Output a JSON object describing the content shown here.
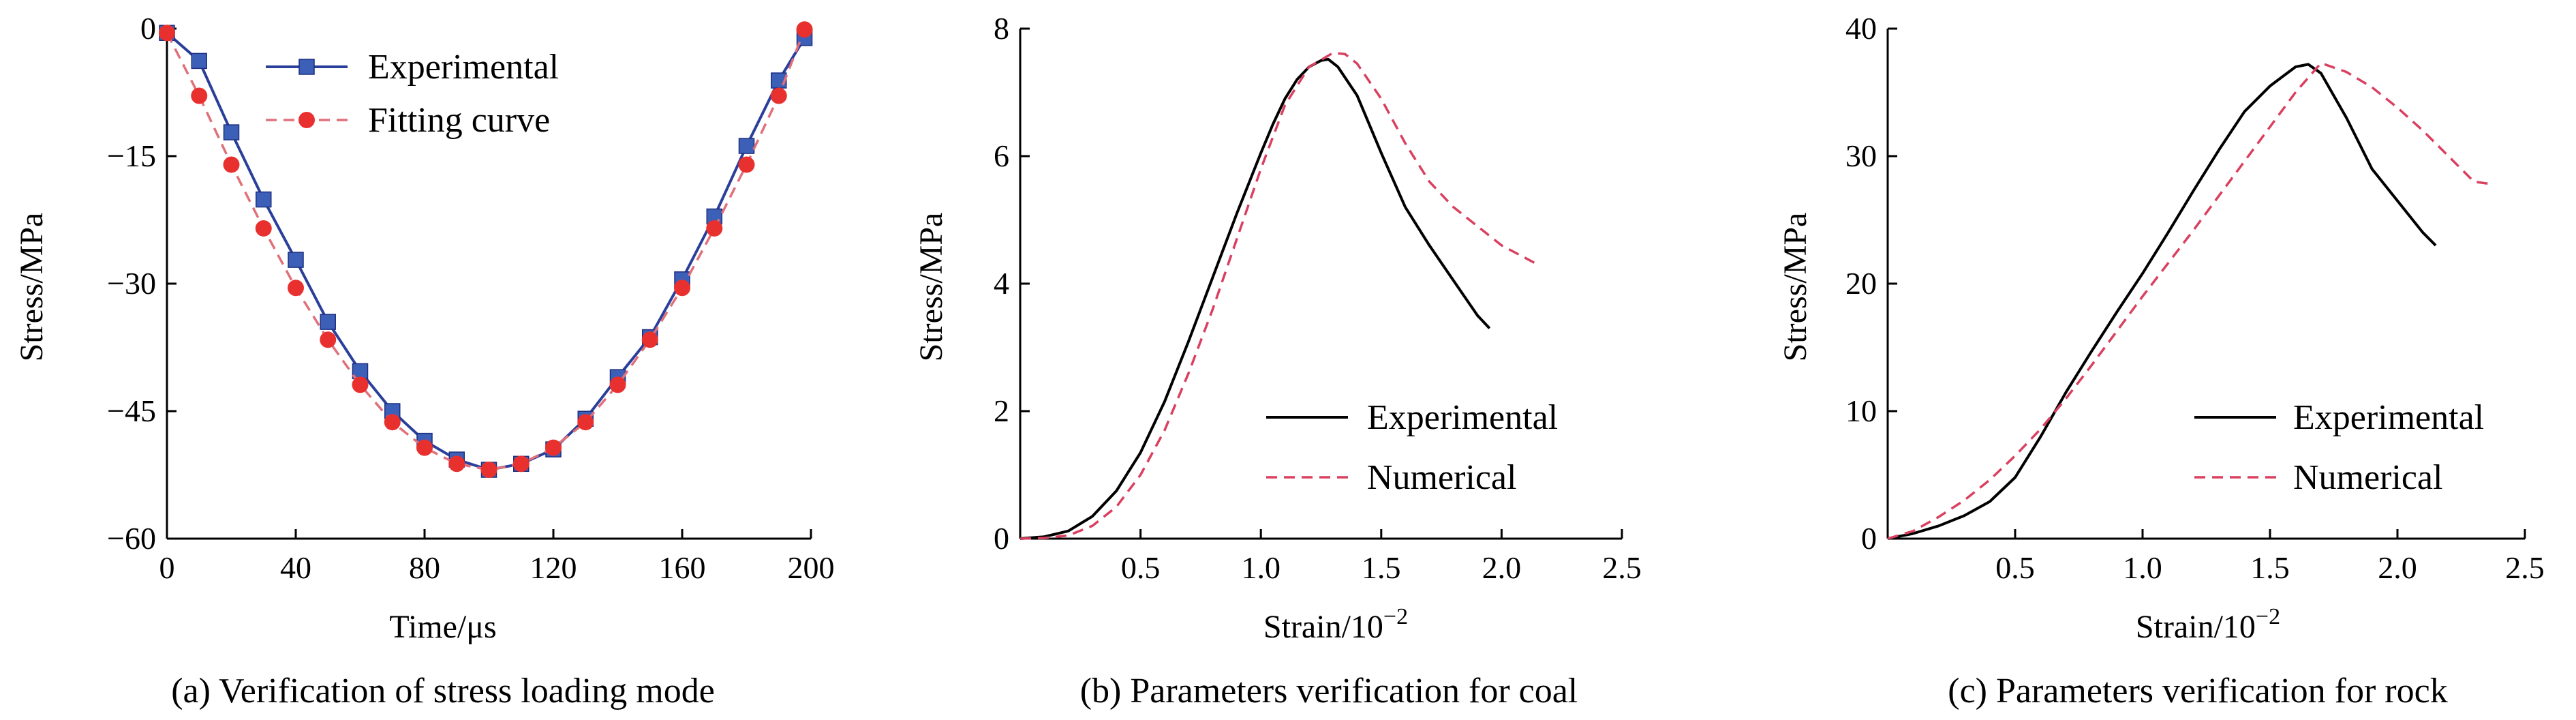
{
  "chart_data": [
    {
      "type": "line",
      "caption": "(a) Verification of stress loading mode",
      "xlabel": "Time/μs",
      "ylabel": "Stress/MPa",
      "xlim": [
        0,
        200
      ],
      "ylim": [
        -60,
        0
      ],
      "xticks": [
        0,
        40,
        80,
        120,
        160,
        200
      ],
      "yticks": [
        0,
        -15,
        -30,
        -45,
        -60
      ],
      "xtick_labels": [
        "0",
        "40",
        "80",
        "120",
        "160",
        "200"
      ],
      "ytick_labels": [
        "0",
        "−15",
        "−30",
        "−45",
        "−60"
      ],
      "legend_position": "top-center",
      "series": [
        {
          "name": "Experimental",
          "color": "#2a3f9a",
          "marker_color": "#3c5fb8",
          "marker": "square",
          "style": "solid",
          "x": [
            0,
            10,
            20,
            30,
            40,
            50,
            60,
            70,
            80,
            90,
            100,
            110,
            120,
            130,
            140,
            150,
            160,
            170,
            180,
            190,
            198
          ],
          "y": [
            -0.5,
            -3.8,
            -12.2,
            -20.1,
            -27.2,
            -34.5,
            -40.3,
            -45,
            -48.5,
            -50.7,
            -51.9,
            -51.2,
            -49.5,
            -45.9,
            -41,
            -36.3,
            -29.5,
            -22.1,
            -13.8,
            -6.1,
            -1.1
          ]
        },
        {
          "name": "Fitting curve",
          "color": "#e0707a",
          "marker_color": "#e8312f",
          "marker": "circle",
          "style": "dashed",
          "x": [
            0,
            10,
            20,
            30,
            40,
            50,
            60,
            70,
            80,
            90,
            100,
            110,
            120,
            130,
            140,
            150,
            160,
            170,
            180,
            190,
            198
          ],
          "y": [
            -0.5,
            -7.9,
            -16,
            -23.5,
            -30.5,
            -36.6,
            -41.9,
            -46.3,
            -49.3,
            -51.2,
            -51.9,
            -51.2,
            -49.3,
            -46.3,
            -41.9,
            -36.6,
            -30.5,
            -23.5,
            -16,
            -7.9,
            -0.1
          ]
        }
      ]
    },
    {
      "type": "line",
      "caption": "(b) Parameters verification for coal",
      "xlabel": "Strain/10",
      "xlabel_sup": "−2",
      "ylabel": "Stress/MPa",
      "xlim": [
        0,
        2.5
      ],
      "ylim": [
        0,
        8
      ],
      "xticks": [
        0.5,
        1.0,
        1.5,
        2.0,
        2.5
      ],
      "yticks": [
        0,
        2,
        4,
        6,
        8
      ],
      "xtick_labels": [
        "0.5",
        "1.0",
        "1.5",
        "2.0",
        "2.5"
      ],
      "ytick_labels": [
        "0",
        "2",
        "4",
        "6",
        "8"
      ],
      "legend_position": "bottom-right",
      "series": [
        {
          "name": "Experimental",
          "color": "#000000",
          "style": "solid",
          "x": [
            0,
            0.1,
            0.2,
            0.3,
            0.4,
            0.5,
            0.6,
            0.7,
            0.8,
            0.9,
            1.0,
            1.05,
            1.1,
            1.15,
            1.2,
            1.25,
            1.28,
            1.32,
            1.4,
            1.5,
            1.6,
            1.7,
            1.8,
            1.9,
            1.95
          ],
          "y": [
            0,
            0.03,
            0.12,
            0.35,
            0.75,
            1.35,
            2.15,
            3.1,
            4.1,
            5.1,
            6.05,
            6.5,
            6.9,
            7.2,
            7.4,
            7.5,
            7.52,
            7.4,
            6.95,
            6.05,
            5.2,
            4.6,
            4.05,
            3.5,
            3.3
          ]
        },
        {
          "name": "Numerical",
          "color": "#d94060",
          "style": "dashed",
          "x": [
            0,
            0.1,
            0.2,
            0.3,
            0.4,
            0.5,
            0.6,
            0.7,
            0.8,
            0.9,
            1.0,
            1.1,
            1.2,
            1.3,
            1.35,
            1.4,
            1.5,
            1.6,
            1.7,
            1.8,
            1.9,
            2.0,
            2.1,
            2.15
          ],
          "y": [
            0,
            0.01,
            0.05,
            0.2,
            0.5,
            1.0,
            1.7,
            2.6,
            3.6,
            4.7,
            5.8,
            6.8,
            7.4,
            7.62,
            7.6,
            7.45,
            6.9,
            6.2,
            5.6,
            5.2,
            4.9,
            4.6,
            4.4,
            4.3
          ]
        }
      ]
    },
    {
      "type": "line",
      "caption": "(c) Parameters verification for rock",
      "xlabel": "Strain/10",
      "xlabel_sup": "−2",
      "ylabel": "Stress/MPa",
      "xlim": [
        0,
        2.5
      ],
      "ylim": [
        0,
        40
      ],
      "xticks": [
        0.5,
        1.0,
        1.5,
        2.0,
        2.5
      ],
      "yticks": [
        0,
        10,
        20,
        30,
        40
      ],
      "xtick_labels": [
        "0.5",
        "1.0",
        "1.5",
        "2.0",
        "2.5"
      ],
      "ytick_labels": [
        "0",
        "10",
        "20",
        "30",
        "40"
      ],
      "legend_position": "bottom-right",
      "series": [
        {
          "name": "Experimental",
          "color": "#000000",
          "style": "solid",
          "x": [
            0,
            0.1,
            0.2,
            0.3,
            0.4,
            0.5,
            0.6,
            0.7,
            0.8,
            0.9,
            1.0,
            1.1,
            1.2,
            1.3,
            1.4,
            1.5,
            1.6,
            1.65,
            1.7,
            1.8,
            1.9,
            2.0,
            2.1,
            2.15
          ],
          "y": [
            0,
            0.4,
            1.0,
            1.8,
            2.9,
            4.8,
            8,
            11.5,
            14.7,
            17.8,
            20.8,
            24,
            27.3,
            30.5,
            33.5,
            35.5,
            37,
            37.2,
            36.5,
            33,
            29,
            26.5,
            24,
            23
          ]
        },
        {
          "name": "Numerical",
          "color": "#d94060",
          "style": "dashed",
          "x": [
            0,
            0.1,
            0.2,
            0.3,
            0.4,
            0.5,
            0.6,
            0.7,
            0.8,
            0.9,
            1.0,
            1.1,
            1.2,
            1.3,
            1.4,
            1.5,
            1.6,
            1.7,
            1.8,
            1.9,
            2.0,
            2.1,
            2.2,
            2.3,
            2.37
          ],
          "y": [
            0,
            0.6,
            1.7,
            3.0,
            4.6,
            6.5,
            8.6,
            11,
            13.6,
            16.3,
            19,
            21.6,
            24.2,
            26.9,
            29.6,
            32.3,
            35,
            37.3,
            36.6,
            35.4,
            33.8,
            32,
            30,
            28,
            27.8
          ]
        }
      ]
    }
  ]
}
